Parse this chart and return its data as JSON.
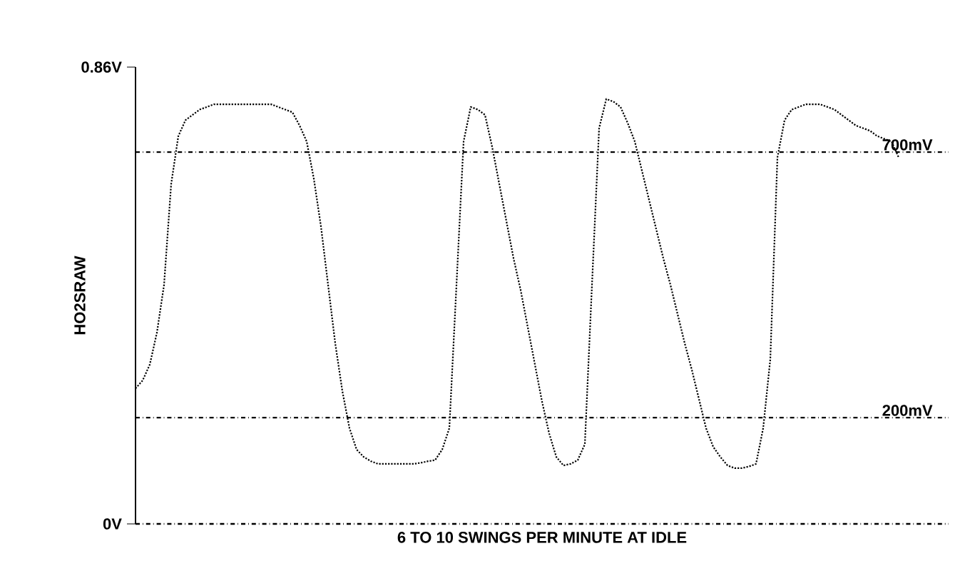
{
  "chart_data": {
    "type": "line",
    "xlabel": "6 TO 10 SWINGS PER MINUTE AT IDLE",
    "ylabel": "HO2SRAW",
    "ylim": [
      0,
      0.86
    ],
    "yticks": [
      {
        "value": 0,
        "label": "0V"
      },
      {
        "value": 0.86,
        "label": "0.86V"
      }
    ],
    "tick_labels": "y",
    "line_style": "dotted",
    "marker": "none",
    "categories": [
      null,
      null,
      null,
      null,
      null,
      null,
      null,
      null,
      null,
      null,
      null,
      null,
      null,
      null,
      null,
      null,
      null,
      null,
      null,
      null,
      null,
      null,
      null,
      null,
      null,
      null,
      null,
      null,
      null,
      null,
      null,
      null,
      null,
      null,
      null,
      null,
      null,
      null,
      null,
      null,
      null,
      null,
      null,
      null,
      null,
      null,
      null,
      null,
      null,
      null,
      null,
      null,
      null,
      null,
      null,
      null,
      null,
      null,
      null,
      null,
      null,
      null,
      null,
      null,
      null,
      null,
      null,
      null,
      null,
      null,
      null,
      null,
      null,
      null,
      null,
      null,
      null,
      null,
      null,
      null,
      null,
      null,
      null,
      null,
      null,
      null,
      null,
      null,
      null,
      null,
      null,
      null,
      null,
      null,
      null,
      null,
      null,
      null,
      null,
      null,
      null,
      null,
      null,
      null,
      null,
      null,
      null,
      null,
      null,
      null,
      null,
      null,
      null,
      null,
      null
    ],
    "series": [
      {
        "color": "#000000",
        "values": [
          0.255,
          0.27,
          0.3,
          0.36,
          0.45,
          0.64,
          0.73,
          0.76,
          0.77,
          0.78,
          0.785,
          0.79,
          0.79,
          0.79,
          0.79,
          0.79,
          0.79,
          0.79,
          0.79,
          0.79,
          0.785,
          0.78,
          0.775,
          0.75,
          0.72,
          0.65,
          0.56,
          0.45,
          0.34,
          0.25,
          0.18,
          0.14,
          0.126,
          0.118,
          0.113,
          0.113,
          0.113,
          0.113,
          0.113,
          0.113,
          0.115,
          0.118,
          0.12,
          0.14,
          0.18,
          0.45,
          0.72,
          0.785,
          0.78,
          0.77,
          0.71,
          0.64,
          0.57,
          0.5,
          0.44,
          0.37,
          0.3,
          0.23,
          0.17,
          0.126,
          0.11,
          0.113,
          0.12,
          0.15,
          0.45,
          0.745,
          0.8,
          0.795,
          0.785,
          0.755,
          0.72,
          0.665,
          0.61,
          0.555,
          0.5,
          0.45,
          0.395,
          0.34,
          0.29,
          0.235,
          0.18,
          0.145,
          0.126,
          0.11,
          0.105,
          0.105,
          0.108,
          0.113,
          0.18,
          0.31,
          0.69,
          0.76,
          0.78,
          0.785,
          0.79,
          0.79,
          0.79,
          0.785,
          0.78,
          0.77,
          0.76,
          0.75,
          0.745,
          0.74,
          0.73,
          0.725,
          0.72,
          0.69,
          null,
          null,
          null,
          null,
          null,
          null,
          null
        ]
      }
    ],
    "ref_lines": [
      {
        "axis": "y",
        "value": 0.7,
        "label": "700mV",
        "color": "#000000",
        "line_style": "dashdot"
      },
      {
        "axis": "y",
        "value": 0.2,
        "label": "200mV",
        "color": "#000000",
        "line_style": "dashdot"
      }
    ]
  }
}
